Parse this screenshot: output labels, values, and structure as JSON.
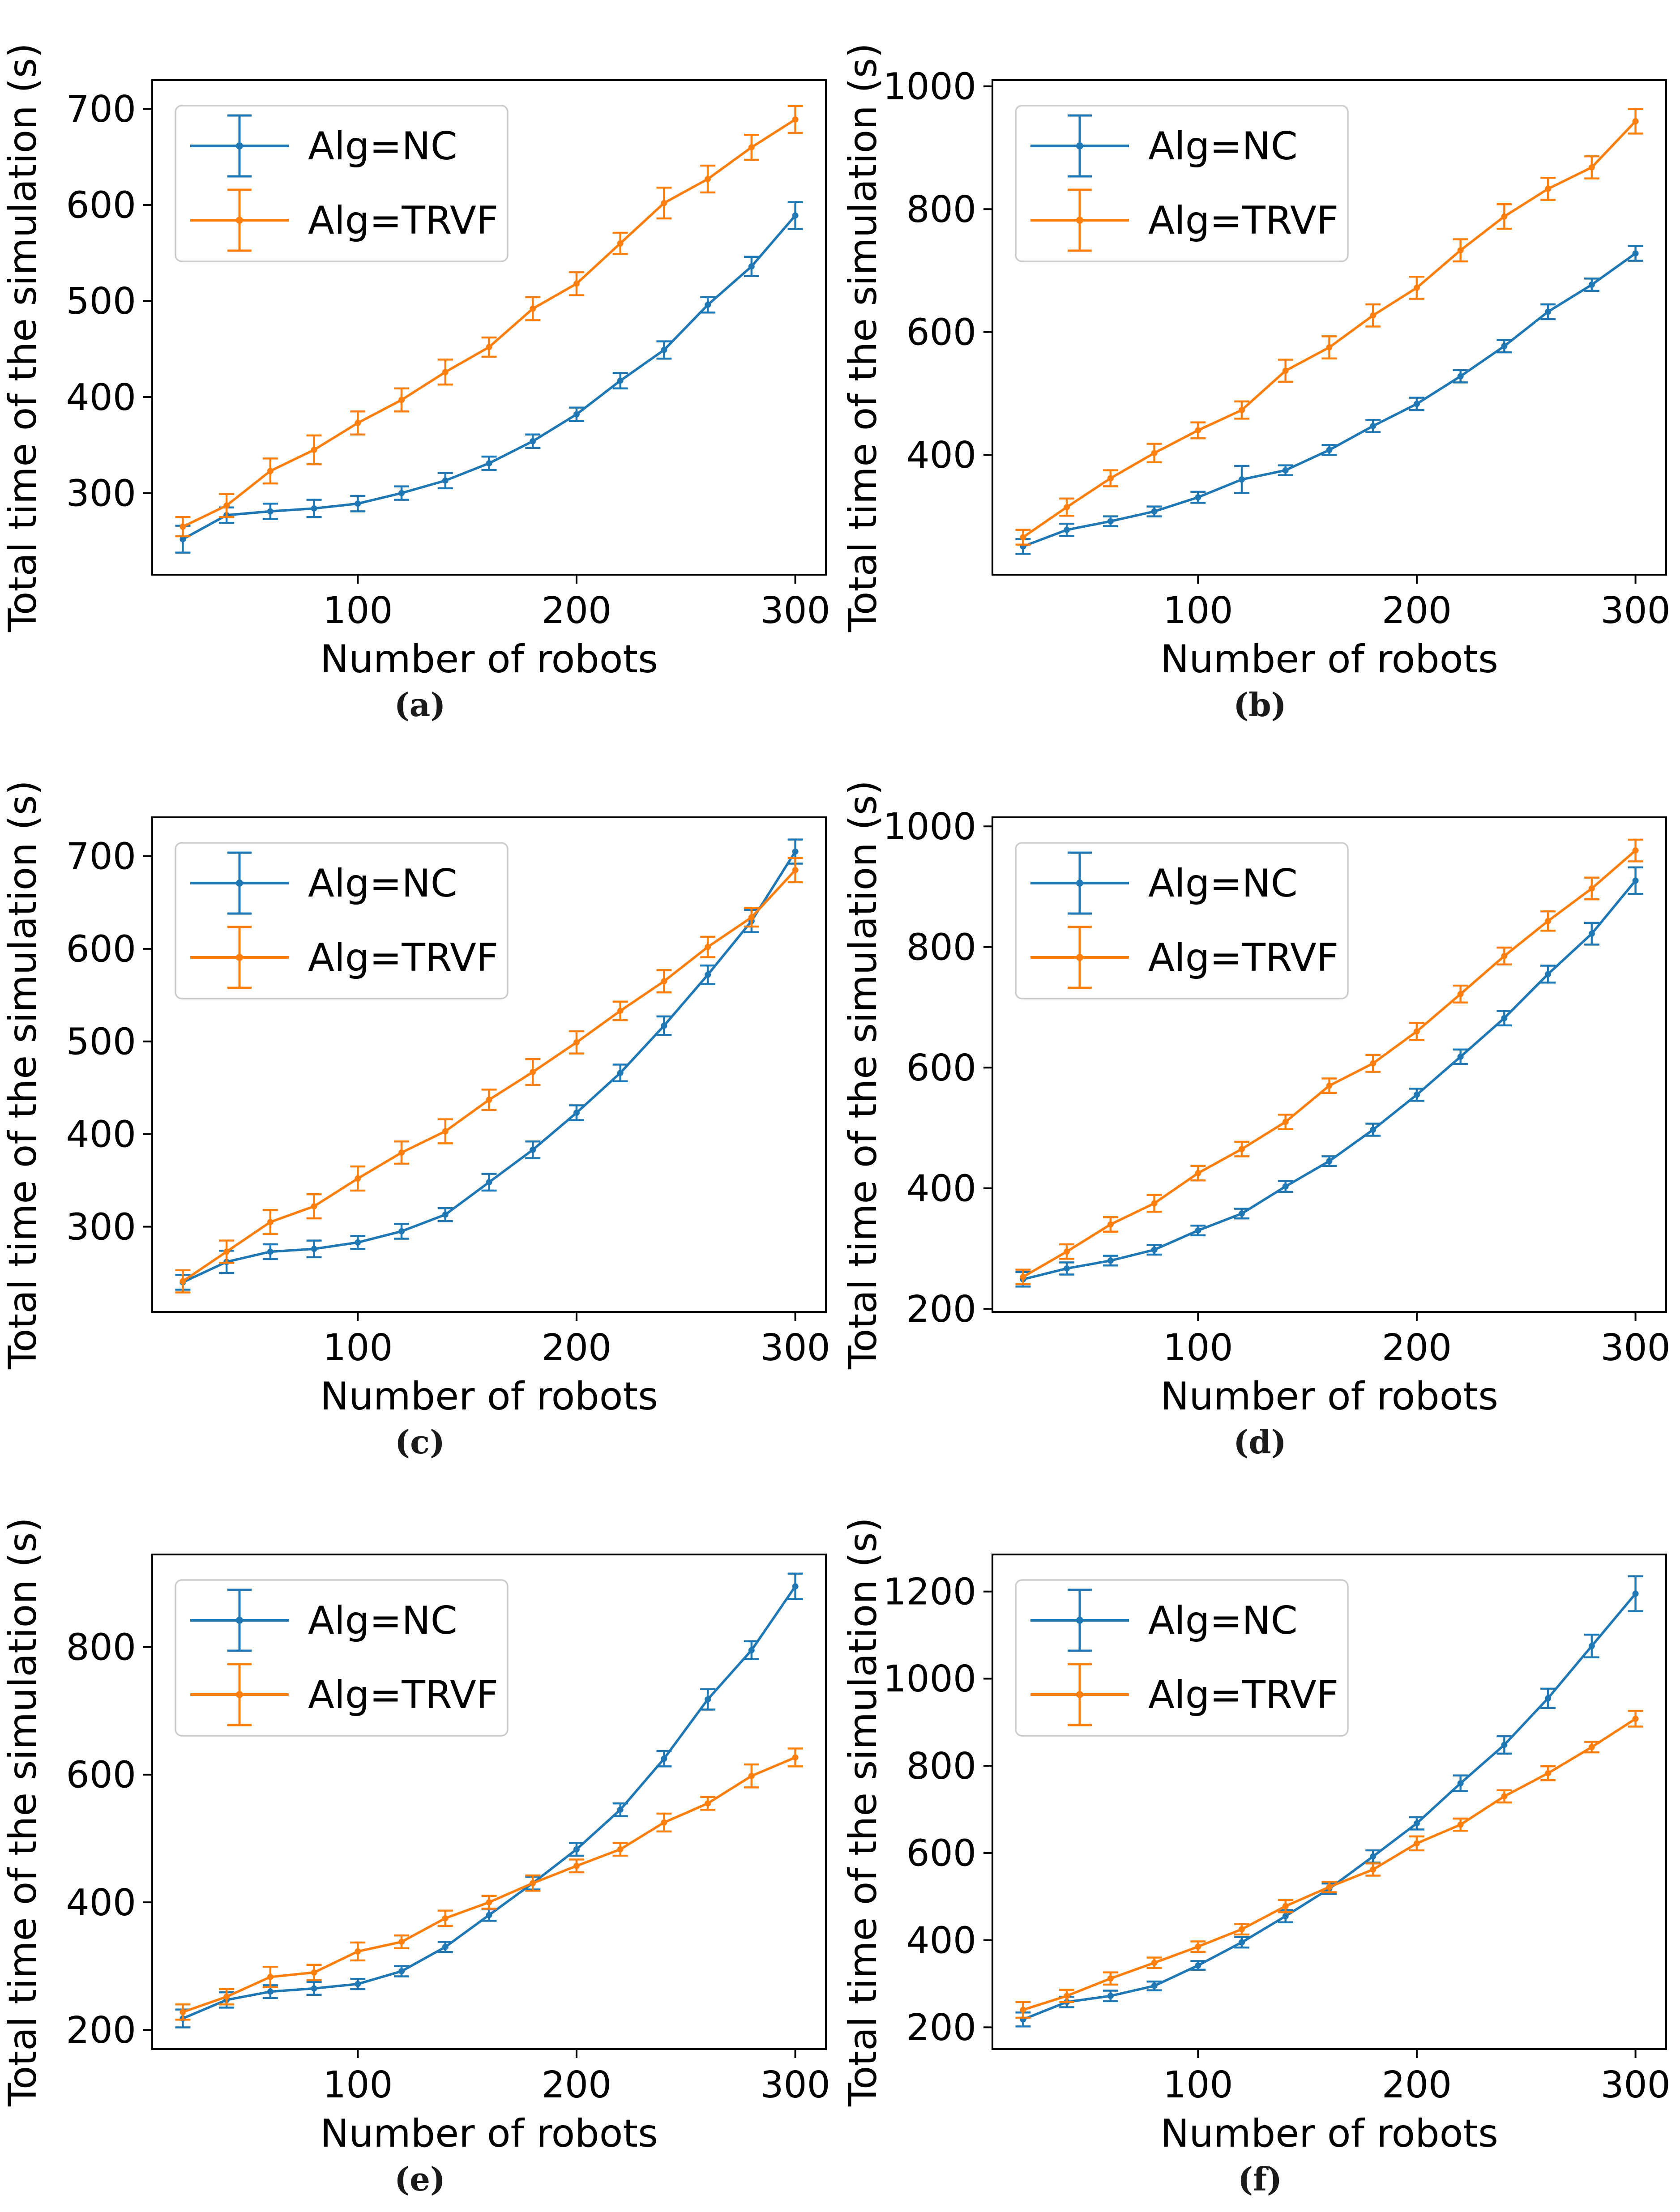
{
  "page": {
    "background": "#ffffff"
  },
  "figure": {
    "xlabel": "Number of robots",
    "ylabel": "Total time of the simulation (s)",
    "legend_entries": [
      "Alg=NC",
      "Alg=TRVF"
    ],
    "colors": {
      "nc_blue": "#1f77b4",
      "trvf_orange": "#ff7f0e",
      "legend_border": "#cccccc",
      "text": "#000000"
    }
  },
  "chart_data": [
    {
      "id": "a",
      "caption": "(a)",
      "type": "line",
      "xlabel": "Number of robots",
      "ylabel": "Total time of the simulation (s)",
      "x": [
        20,
        40,
        60,
        80,
        100,
        120,
        140,
        160,
        180,
        200,
        220,
        240,
        260,
        280,
        300
      ],
      "xticks": [
        100,
        200,
        300
      ],
      "xlim": [
        6,
        314
      ],
      "yticks": [
        300,
        400,
        500,
        600,
        700
      ],
      "ylim": [
        215,
        730
      ],
      "grid": false,
      "legend_position": "upper-left",
      "series": [
        {
          "name": "Alg=NC",
          "color": "#1f77b4",
          "values": [
            252,
            277,
            281,
            284,
            289,
            300,
            313,
            331,
            354,
            382,
            417,
            449,
            496,
            536,
            589
          ],
          "errors": [
            14,
            8,
            8,
            9,
            8,
            7,
            8,
            7,
            7,
            7,
            8,
            9,
            8,
            10,
            14
          ]
        },
        {
          "name": "Alg=TRVF",
          "color": "#ff7f0e",
          "values": [
            265,
            287,
            323,
            345,
            373,
            397,
            426,
            452,
            492,
            518,
            560,
            602,
            627,
            660,
            689
          ],
          "errors": [
            10,
            12,
            13,
            15,
            12,
            12,
            13,
            10,
            12,
            12,
            11,
            16,
            14,
            13,
            14
          ]
        }
      ]
    },
    {
      "id": "b",
      "caption": "(b)",
      "type": "line",
      "xlabel": "Number of robots",
      "ylabel": "Total time of the simulation (s)",
      "x": [
        20,
        40,
        60,
        80,
        100,
        120,
        140,
        160,
        180,
        200,
        220,
        240,
        260,
        280,
        300
      ],
      "xticks": [
        100,
        200,
        300
      ],
      "xlim": [
        6,
        314
      ],
      "yticks": [
        400,
        600,
        800,
        1000
      ],
      "ylim": [
        205,
        1010
      ],
      "grid": false,
      "legend_position": "upper-left",
      "series": [
        {
          "name": "Alg=NC",
          "color": "#1f77b4",
          "values": [
            251,
            278,
            292,
            308,
            331,
            360,
            375,
            408,
            447,
            483,
            528,
            577,
            633,
            677,
            728
          ],
          "errors": [
            12,
            10,
            8,
            8,
            9,
            22,
            8,
            8,
            10,
            10,
            10,
            10,
            12,
            10,
            12
          ]
        },
        {
          "name": "Alg=TRVF",
          "color": "#ff7f0e",
          "values": [
            266,
            315,
            362,
            403,
            440,
            473,
            537,
            575,
            627,
            672,
            733,
            788,
            833,
            868,
            943
          ],
          "errors": [
            12,
            14,
            13,
            15,
            13,
            14,
            18,
            18,
            18,
            18,
            18,
            20,
            18,
            18,
            20
          ]
        }
      ]
    },
    {
      "id": "c",
      "caption": "(c)",
      "type": "line",
      "xlabel": "Number of robots",
      "ylabel": "Total time of the simulation (s)",
      "x": [
        20,
        40,
        60,
        80,
        100,
        120,
        140,
        160,
        180,
        200,
        220,
        240,
        260,
        280,
        300
      ],
      "xticks": [
        100,
        200,
        300
      ],
      "xlim": [
        6,
        314
      ],
      "yticks": [
        300,
        400,
        500,
        600,
        700
      ],
      "ylim": [
        208,
        742
      ],
      "grid": false,
      "legend_position": "upper-left",
      "series": [
        {
          "name": "Alg=NC",
          "color": "#1f77b4",
          "values": [
            240,
            262,
            273,
            276,
            283,
            295,
            313,
            348,
            383,
            423,
            466,
            517,
            572,
            630,
            705
          ],
          "errors": [
            8,
            12,
            8,
            9,
            7,
            8,
            7,
            9,
            9,
            8,
            9,
            10,
            10,
            12,
            13
          ]
        },
        {
          "name": "Alg=TRVF",
          "color": "#ff7f0e",
          "values": [
            241,
            273,
            305,
            322,
            352,
            380,
            403,
            437,
            467,
            499,
            533,
            565,
            602,
            634,
            685
          ],
          "errors": [
            12,
            12,
            13,
            13,
            13,
            12,
            13,
            11,
            14,
            12,
            10,
            12,
            11,
            10,
            13
          ]
        }
      ]
    },
    {
      "id": "d",
      "caption": "(d)",
      "type": "line",
      "xlabel": "Number of robots",
      "ylabel": "Total time of the simulation (s)",
      "x": [
        20,
        40,
        60,
        80,
        100,
        120,
        140,
        160,
        180,
        200,
        220,
        240,
        260,
        280,
        300
      ],
      "xticks": [
        100,
        200,
        300
      ],
      "xlim": [
        6,
        314
      ],
      "yticks": [
        200,
        400,
        600,
        800,
        1000
      ],
      "ylim": [
        195,
        1015
      ],
      "grid": false,
      "legend_position": "upper-left",
      "series": [
        {
          "name": "Alg=NC",
          "color": "#1f77b4",
          "values": [
            249,
            267,
            280,
            298,
            330,
            358,
            403,
            445,
            497,
            555,
            618,
            682,
            755,
            822,
            910
          ],
          "errors": [
            12,
            10,
            8,
            8,
            8,
            8,
            9,
            8,
            10,
            10,
            12,
            12,
            14,
            18,
            22
          ]
        },
        {
          "name": "Alg=TRVF",
          "color": "#ff7f0e",
          "values": [
            253,
            295,
            340,
            375,
            425,
            465,
            510,
            570,
            607,
            660,
            722,
            785,
            843,
            897,
            960
          ],
          "errors": [
            12,
            12,
            12,
            14,
            12,
            12,
            12,
            12,
            14,
            14,
            14,
            14,
            16,
            18,
            18
          ]
        }
      ]
    },
    {
      "id": "e",
      "caption": "(e)",
      "type": "line",
      "xlabel": "Number of robots",
      "ylabel": "Total time of the simulation (s)",
      "x": [
        20,
        40,
        60,
        80,
        100,
        120,
        140,
        160,
        180,
        200,
        220,
        240,
        260,
        280,
        300
      ],
      "xticks": [
        100,
        200,
        300
      ],
      "xlim": [
        6,
        314
      ],
      "yticks": [
        200,
        400,
        600,
        800
      ],
      "ylim": [
        170,
        945
      ],
      "grid": false,
      "legend_position": "upper-left",
      "series": [
        {
          "name": "Alg=NC",
          "color": "#1f77b4",
          "values": [
            218,
            247,
            260,
            265,
            272,
            292,
            330,
            380,
            430,
            483,
            545,
            625,
            718,
            795,
            895
          ],
          "errors": [
            14,
            12,
            10,
            10,
            8,
            8,
            8,
            9,
            10,
            10,
            10,
            12,
            16,
            14,
            20
          ]
        },
        {
          "name": "Alg=TRVF",
          "color": "#ff7f0e",
          "values": [
            228,
            252,
            283,
            290,
            323,
            338,
            375,
            400,
            430,
            457,
            483,
            525,
            555,
            598,
            627
          ],
          "errors": [
            12,
            12,
            16,
            12,
            14,
            10,
            12,
            10,
            12,
            10,
            10,
            14,
            10,
            18,
            14
          ]
        }
      ]
    },
    {
      "id": "f",
      "caption": "(f)",
      "type": "line",
      "xlabel": "Number of robots",
      "ylabel": "Total time of the simulation (s)",
      "x": [
        20,
        40,
        60,
        80,
        100,
        120,
        140,
        160,
        180,
        200,
        220,
        240,
        260,
        280,
        300
      ],
      "xticks": [
        100,
        200,
        300
      ],
      "xlim": [
        6,
        314
      ],
      "yticks": [
        200,
        400,
        600,
        800,
        1000,
        1200
      ],
      "ylim": [
        150,
        1285
      ],
      "grid": false,
      "legend_position": "upper-left",
      "series": [
        {
          "name": "Alg=NC",
          "color": "#1f77b4",
          "values": [
            218,
            258,
            272,
            295,
            342,
            395,
            455,
            518,
            592,
            668,
            760,
            848,
            955,
            1075,
            1195
          ],
          "errors": [
            16,
            12,
            12,
            10,
            10,
            12,
            14,
            12,
            14,
            14,
            18,
            20,
            22,
            26,
            40
          ]
        },
        {
          "name": "Alg=TRVF",
          "color": "#ff7f0e",
          "values": [
            240,
            272,
            312,
            348,
            385,
            425,
            478,
            522,
            562,
            622,
            665,
            730,
            783,
            843,
            908
          ],
          "errors": [
            18,
            14,
            14,
            12,
            12,
            12,
            14,
            12,
            14,
            16,
            14,
            14,
            16,
            12,
            18
          ]
        }
      ]
    }
  ]
}
